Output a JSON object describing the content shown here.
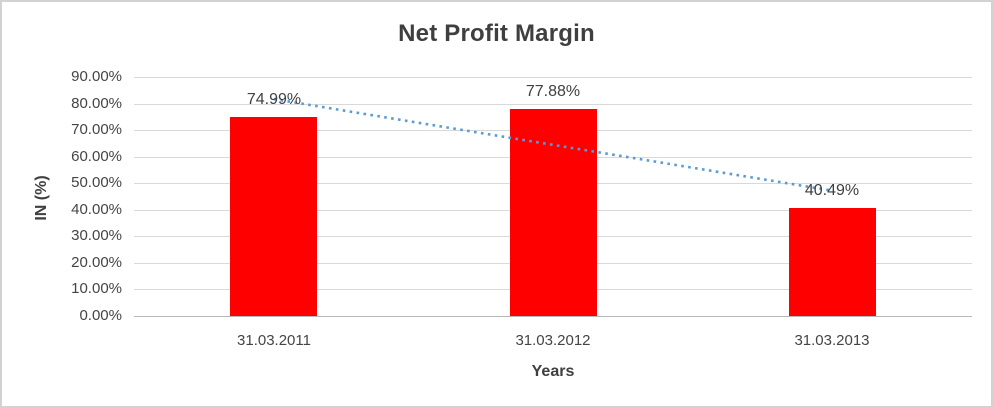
{
  "chart_data": {
    "type": "bar",
    "title": "Net Profit Margin",
    "xlabel": "Years",
    "ylabel": "IN (%)",
    "categories": [
      "31.03.2011",
      "31.03.2012",
      "31.03.2013"
    ],
    "values": [
      74.99,
      77.88,
      40.49
    ],
    "data_labels": [
      "74.99%",
      "77.88%",
      "40.49%"
    ],
    "yticks": [
      "0.00%",
      "10.00%",
      "20.00%",
      "30.00%",
      "40.00%",
      "50.00%",
      "60.00%",
      "70.00%",
      "80.00%",
      "90.00%"
    ],
    "ytick_values": [
      0,
      10,
      20,
      30,
      40,
      50,
      60,
      70,
      80,
      90
    ],
    "ylim": [
      0,
      90
    ],
    "grid": "horizontal",
    "legend": "none",
    "bar_color": "#FF0000",
    "text_color": "#404040",
    "gridline_color": "#d9d9d9",
    "trendline": {
      "type": "linear",
      "style": "dotted",
      "color": "#5B9BD5"
    }
  }
}
